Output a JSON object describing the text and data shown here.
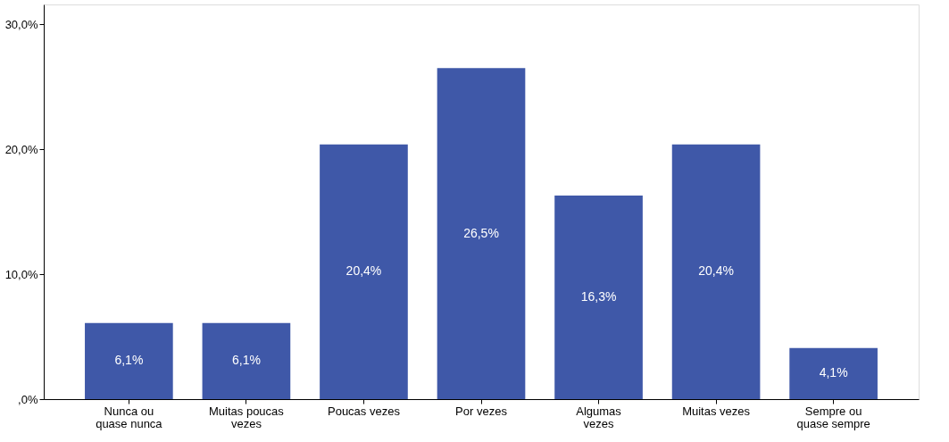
{
  "chart_data": {
    "type": "bar",
    "categories": [
      "Nunca ou\nquase nunca",
      "Muitas poucas\nvezes",
      "Poucas vezes",
      "Por vezes",
      "Algumas\nvezes",
      "Muitas vezes",
      "Sempre ou\nquase sempre"
    ],
    "values": [
      6.1,
      6.1,
      20.4,
      26.5,
      16.3,
      20.4,
      4.1
    ],
    "value_labels": [
      "6,1%",
      "6,1%",
      "20,4%",
      "26,5%",
      "16,3%",
      "20,4%",
      "4,1%"
    ],
    "color": "#3f58a8",
    "ylim": [
      0,
      31.6
    ],
    "yticks": [
      {
        "value": 0,
        "label": ",0%"
      },
      {
        "value": 10,
        "label": "10,0%"
      },
      {
        "value": 20,
        "label": "20,0%"
      },
      {
        "value": 30,
        "label": "30,0%"
      }
    ],
    "grid": false
  }
}
